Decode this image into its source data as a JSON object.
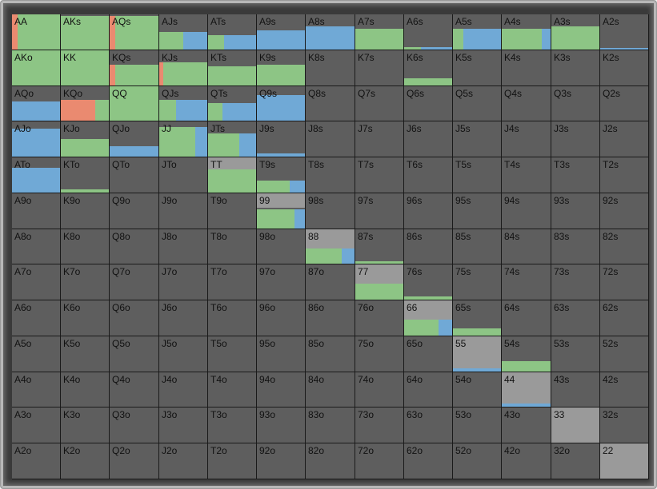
{
  "grid": {
    "rows": [
      [
        "AA",
        "AKs",
        "AQs",
        "AJs",
        "ATs",
        "A9s",
        "A8s",
        "A7s",
        "A6s",
        "A5s",
        "A4s",
        "A3s",
        "A2s"
      ],
      [
        "AKo",
        "KK",
        "KQs",
        "KJs",
        "KTs",
        "K9s",
        "K8s",
        "K7s",
        "K6s",
        "K5s",
        "K4s",
        "K3s",
        "K2s"
      ],
      [
        "AQo",
        "KQo",
        "QQ",
        "QJs",
        "QTs",
        "Q9s",
        "Q8s",
        "Q7s",
        "Q6s",
        "Q5s",
        "Q4s",
        "Q3s",
        "Q2s"
      ],
      [
        "AJo",
        "KJo",
        "QJo",
        "JJ",
        "JTs",
        "J9s",
        "J8s",
        "J7s",
        "J6s",
        "J5s",
        "J4s",
        "J3s",
        "J2s"
      ],
      [
        "ATo",
        "KTo",
        "QTo",
        "JTo",
        "TT",
        "T9s",
        "T8s",
        "T7s",
        "T6s",
        "T5s",
        "T4s",
        "T3s",
        "T2s"
      ],
      [
        "A9o",
        "K9o",
        "Q9o",
        "J9o",
        "T9o",
        "99",
        "98s",
        "97s",
        "96s",
        "95s",
        "94s",
        "93s",
        "92s"
      ],
      [
        "A8o",
        "K8o",
        "Q8o",
        "J8o",
        "T8o",
        "98o",
        "88",
        "87s",
        "86s",
        "85s",
        "84s",
        "83s",
        "82s"
      ],
      [
        "A7o",
        "K7o",
        "Q7o",
        "J7o",
        "T7o",
        "97o",
        "87o",
        "77",
        "76s",
        "75s",
        "74s",
        "73s",
        "72s"
      ],
      [
        "A6o",
        "K6o",
        "Q6o",
        "J6o",
        "T6o",
        "96o",
        "86o",
        "76o",
        "66",
        "65s",
        "64s",
        "63s",
        "62s"
      ],
      [
        "A5o",
        "K5o",
        "Q5o",
        "J5o",
        "T5o",
        "95o",
        "85o",
        "75o",
        "65o",
        "55",
        "54s",
        "53s",
        "52s"
      ],
      [
        "A4o",
        "K4o",
        "Q4o",
        "J4o",
        "T4o",
        "94o",
        "84o",
        "74o",
        "64o",
        "54o",
        "44",
        "43s",
        "42s"
      ],
      [
        "A3o",
        "K3o",
        "Q3o",
        "J3o",
        "T3o",
        "93o",
        "83o",
        "73o",
        "63o",
        "53o",
        "43o",
        "33",
        "32s"
      ],
      [
        "A2o",
        "K2o",
        "Q2o",
        "J2o",
        "T2o",
        "92o",
        "82o",
        "72o",
        "62o",
        "52o",
        "42o",
        "32o",
        "22"
      ]
    ]
  },
  "colors": {
    "green": "#8dc585",
    "blue": "#70a9d6",
    "red": "#ea8a70",
    "grey": "#9a9a9a",
    "empty": "#5e5e5e"
  },
  "frequencies": {
    "AA": {
      "fill": 1.0,
      "parts": [
        [
          "red",
          0.12
        ],
        [
          "green",
          0.88
        ]
      ]
    },
    "AKs": {
      "fill": 0.95,
      "parts": [
        [
          "green",
          1.0
        ]
      ]
    },
    "AQs": {
      "fill": 0.95,
      "parts": [
        [
          "red",
          0.12
        ],
        [
          "green",
          0.88
        ]
      ]
    },
    "AJs": {
      "fill": 0.5,
      "parts": [
        [
          "green",
          0.5
        ],
        [
          "blue",
          0.5
        ]
      ]
    },
    "ATs": {
      "fill": 0.4,
      "parts": [
        [
          "green",
          0.33
        ],
        [
          "blue",
          0.67
        ]
      ]
    },
    "A9s": {
      "fill": 0.55,
      "parts": [
        [
          "blue",
          1.0
        ]
      ]
    },
    "A8s": {
      "fill": 0.65,
      "parts": [
        [
          "blue",
          1.0
        ]
      ]
    },
    "A7s": {
      "fill": 0.6,
      "parts": [
        [
          "green",
          1.0
        ]
      ]
    },
    "A6s": {
      "fill": 0.06,
      "parts": [
        [
          "green",
          0.35
        ],
        [
          "blue",
          0.65
        ]
      ]
    },
    "A5s": {
      "fill": 0.6,
      "parts": [
        [
          "green",
          0.22
        ],
        [
          "blue",
          0.78
        ]
      ]
    },
    "A4s": {
      "fill": 0.6,
      "parts": [
        [
          "green",
          0.82
        ],
        [
          "blue",
          0.18
        ]
      ]
    },
    "A3s": {
      "fill": 0.65,
      "parts": [
        [
          "green",
          1.0
        ]
      ]
    },
    "A2s": {
      "fill": 0.05,
      "parts": [
        [
          "blue",
          1.0
        ]
      ]
    },
    "AKo": {
      "fill": 1.0,
      "parts": [
        [
          "green",
          1.0
        ]
      ]
    },
    "KK": {
      "fill": 1.0,
      "parts": [
        [
          "green",
          1.0
        ]
      ]
    },
    "KQs": {
      "fill": 0.6,
      "parts": [
        [
          "red",
          0.12
        ],
        [
          "green",
          0.88
        ]
      ]
    },
    "KJs": {
      "fill": 0.65,
      "parts": [
        [
          "red",
          0.08
        ],
        [
          "green",
          0.92
        ]
      ]
    },
    "KTs": {
      "fill": 0.55,
      "parts": [
        [
          "green",
          1.0
        ]
      ]
    },
    "K9s": {
      "fill": 0.6,
      "parts": [
        [
          "green",
          1.0
        ]
      ]
    },
    "K6s": {
      "fill": 0.2,
      "parts": [
        [
          "green",
          1.0
        ]
      ]
    },
    "AQo": {
      "fill": 0.55,
      "parts": [
        [
          "blue",
          1.0
        ]
      ]
    },
    "KQo": {
      "fill": 0.6,
      "parts": [
        [
          "red",
          0.72
        ],
        [
          "green",
          0.28
        ]
      ]
    },
    "QQ": {
      "fill": 1.0,
      "parts": [
        [
          "green",
          1.0
        ]
      ]
    },
    "QJs": {
      "fill": 0.6,
      "parts": [
        [
          "green",
          0.35
        ],
        [
          "blue",
          0.65
        ]
      ]
    },
    "QTs": {
      "fill": 0.5,
      "parts": [
        [
          "green",
          0.3
        ],
        [
          "blue",
          0.7
        ]
      ]
    },
    "Q9s": {
      "fill": 0.75,
      "parts": [
        [
          "blue",
          1.0
        ]
      ]
    },
    "AJo": {
      "fill": 0.8,
      "parts": [
        [
          "blue",
          1.0
        ]
      ]
    },
    "KJo": {
      "fill": 0.5,
      "parts": [
        [
          "green",
          1.0
        ]
      ]
    },
    "QJo": {
      "fill": 0.3,
      "parts": [
        [
          "blue",
          1.0
        ]
      ]
    },
    "JJ": {
      "fill": 0.85,
      "parts": [
        [
          "green",
          0.75
        ],
        [
          "blue",
          0.25
        ]
      ]
    },
    "JTs": {
      "fill": 0.65,
      "parts": [
        [
          "green",
          0.65
        ],
        [
          "blue",
          0.35
        ]
      ]
    },
    "J9s": {
      "fill": 0.08,
      "parts": [
        [
          "blue",
          1.0
        ]
      ]
    },
    "ATo": {
      "fill": 0.7,
      "parts": [
        [
          "blue",
          1.0
        ]
      ]
    },
    "KTo": {
      "fill": 0.08,
      "parts": [
        [
          "green",
          1.0
        ]
      ]
    },
    "TT": {
      "fill": 0.65,
      "parts": [
        [
          "green",
          1.0
        ]
      ]
    },
    "T9s": {
      "fill": 0.35,
      "parts": [
        [
          "green",
          0.68
        ],
        [
          "blue",
          0.32
        ]
      ]
    },
    "99": {
      "fill": 0.55,
      "parts": [
        [
          "green",
          0.78
        ],
        [
          "blue",
          0.22
        ]
      ]
    },
    "88": {
      "fill": 0.45,
      "parts": [
        [
          "green",
          0.73
        ],
        [
          "blue",
          0.27
        ]
      ]
    },
    "87s": {
      "fill": 0.08,
      "parts": [
        [
          "green",
          1.0
        ]
      ]
    },
    "77": {
      "fill": 0.45,
      "parts": [
        [
          "green",
          1.0
        ]
      ]
    },
    "76s": {
      "fill": 0.1,
      "parts": [
        [
          "green",
          1.0
        ]
      ]
    },
    "66": {
      "fill": 0.45,
      "parts": [
        [
          "green",
          0.72
        ],
        [
          "blue",
          0.28
        ]
      ]
    },
    "65s": {
      "fill": 0.2,
      "parts": [
        [
          "green",
          1.0
        ]
      ]
    },
    "55": {
      "fill": 0.1,
      "parts": [
        [
          "blue",
          1.0
        ]
      ]
    },
    "54s": {
      "fill": 0.3,
      "parts": [
        [
          "green",
          1.0
        ]
      ]
    },
    "44": {
      "fill": 0.1,
      "parts": [
        [
          "blue",
          1.0
        ]
      ]
    }
  },
  "grey_heights": {
    "99": 0.42,
    "88": 0.55,
    "77": 0.55,
    "66": 0.55,
    "55": 0.9,
    "44": 0.9,
    "33": 1.0,
    "22": 1.0,
    "TT": 0.33
  }
}
